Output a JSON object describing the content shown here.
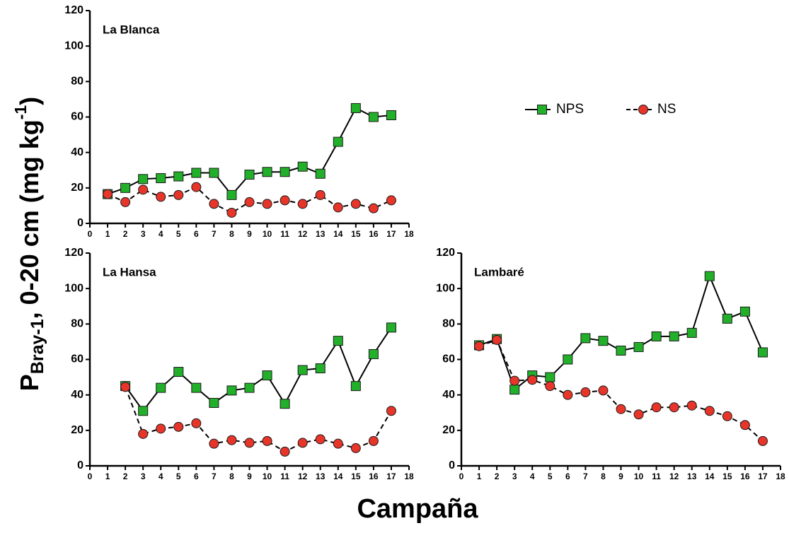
{
  "shared": {
    "x_label": "Campaña",
    "y_label": [
      "P",
      "Bray-1",
      ", 0-20 cm (mg kg",
      "-1",
      ")"
    ]
  },
  "chart_data": [
    {
      "type": "line",
      "title": "La Blanca",
      "x": [
        1,
        2,
        3,
        4,
        5,
        6,
        7,
        8,
        9,
        10,
        11,
        12,
        13,
        14,
        15,
        16,
        17
      ],
      "series": [
        {
          "name": "NPS",
          "color": "#22b02a",
          "marker": "square",
          "linestyle": "solid",
          "values": [
            16.5,
            20,
            25,
            25.5,
            26.5,
            28.5,
            28.5,
            16,
            27.5,
            29,
            29,
            32,
            28,
            46,
            65,
            60,
            61
          ]
        },
        {
          "name": "NS",
          "color": "#e8352a",
          "marker": "circle",
          "linestyle": "dashed",
          "values": [
            16.5,
            12,
            19,
            15,
            16,
            20.5,
            11,
            6,
            12,
            11,
            13,
            11,
            16,
            9,
            11,
            8.5,
            13
          ]
        }
      ],
      "xlim": [
        0,
        18
      ],
      "xticks": [
        0,
        1,
        2,
        3,
        4,
        5,
        6,
        7,
        8,
        9,
        10,
        11,
        12,
        13,
        14,
        15,
        16,
        17,
        18
      ],
      "ylim": [
        0,
        120
      ],
      "yticks": [
        0,
        20,
        40,
        60,
        80,
        100,
        120
      ]
    },
    {
      "type": "line",
      "title": "La Hansa",
      "x": [
        2,
        3,
        4,
        5,
        6,
        7,
        8,
        9,
        10,
        11,
        12,
        13,
        14,
        15,
        16,
        17
      ],
      "series": [
        {
          "name": "NPS",
          "color": "#22b02a",
          "marker": "square",
          "linestyle": "solid",
          "values": [
            45,
            31,
            44,
            53,
            44,
            35.5,
            42.5,
            44,
            51,
            35,
            54,
            55,
            70.5,
            45,
            63,
            78
          ]
        },
        {
          "name": "NS",
          "color": "#e8352a",
          "marker": "circle",
          "linestyle": "dashed",
          "values": [
            44.5,
            18,
            21,
            22,
            24,
            12.5,
            14.5,
            13,
            14,
            8,
            13,
            15,
            12.5,
            10,
            14,
            31
          ]
        }
      ],
      "xlim": [
        0,
        18
      ],
      "xticks": [
        0,
        1,
        2,
        3,
        4,
        5,
        6,
        7,
        8,
        9,
        10,
        11,
        12,
        13,
        14,
        15,
        16,
        17,
        18
      ],
      "ylim": [
        0,
        120
      ],
      "yticks": [
        0,
        20,
        40,
        60,
        80,
        100,
        120
      ]
    },
    {
      "type": "line",
      "title": "Lambaré",
      "x": [
        1,
        2,
        3,
        4,
        5,
        6,
        7,
        8,
        9,
        10,
        11,
        12,
        13,
        14,
        15,
        16,
        17
      ],
      "series": [
        {
          "name": "NPS",
          "color": "#22b02a",
          "marker": "square",
          "linestyle": "solid",
          "values": [
            68,
            71.5,
            43,
            51,
            50,
            60,
            72,
            70.5,
            65,
            67,
            73,
            73,
            75,
            107,
            83,
            87,
            64
          ]
        },
        {
          "name": "NS",
          "color": "#e8352a",
          "marker": "circle",
          "linestyle": "dashed",
          "values": [
            67.5,
            71,
            48,
            48.5,
            45,
            40,
            41.5,
            42.5,
            32,
            29,
            33,
            33,
            34,
            31,
            28,
            23,
            14
          ]
        }
      ],
      "xlim": [
        0,
        18
      ],
      "xticks": [
        0,
        1,
        2,
        3,
        4,
        5,
        6,
        7,
        8,
        9,
        10,
        11,
        12,
        13,
        14,
        15,
        16,
        17,
        18
      ],
      "ylim": [
        0,
        120
      ],
      "yticks": [
        0,
        20,
        40,
        60,
        80,
        100,
        120
      ]
    }
  ]
}
